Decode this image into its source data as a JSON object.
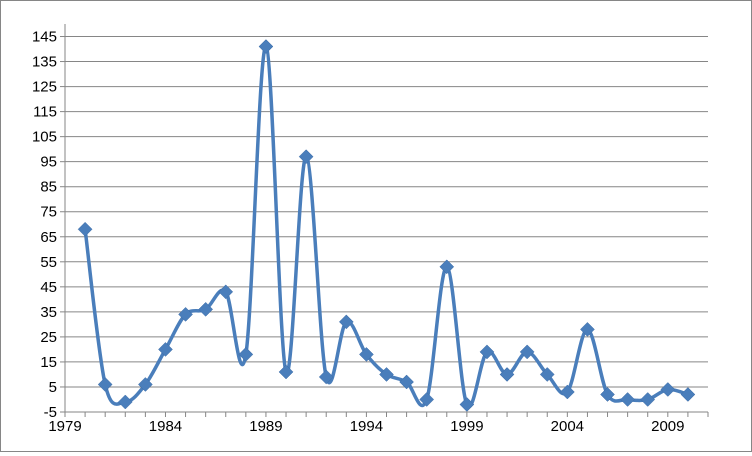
{
  "chart_data": {
    "type": "line",
    "title": "",
    "xlabel": "",
    "ylabel": "",
    "x": [
      1980,
      1981,
      1982,
      1983,
      1984,
      1985,
      1986,
      1987,
      1988,
      1989,
      1990,
      1991,
      1992,
      1993,
      1994,
      1995,
      1996,
      1997,
      1998,
      1999,
      2000,
      2001,
      2002,
      2003,
      2004,
      2005,
      2006,
      2007,
      2008,
      2009,
      2010
    ],
    "values": [
      68,
      6,
      -1,
      6,
      20,
      34,
      36,
      43,
      18,
      141,
      11,
      97,
      9,
      31,
      18,
      10,
      7,
      0,
      53,
      -2,
      19,
      10,
      19,
      10,
      3,
      28,
      2,
      0,
      0,
      4,
      2
    ],
    "xlim": [
      1979,
      2011
    ],
    "ylim": [
      -5,
      150
    ],
    "x_ticks": [
      "1979",
      "1984",
      "1989",
      "1994",
      "1999",
      "2004",
      "2009"
    ],
    "y_ticks": [
      "145",
      "135",
      "125",
      "115",
      "105",
      "95",
      "85",
      "75",
      "65",
      "55",
      "45",
      "35",
      "25",
      "15",
      "5",
      "-5"
    ],
    "grid": true,
    "legend": "none",
    "line_color": "#4a7ebb",
    "marker": "diamond"
  }
}
